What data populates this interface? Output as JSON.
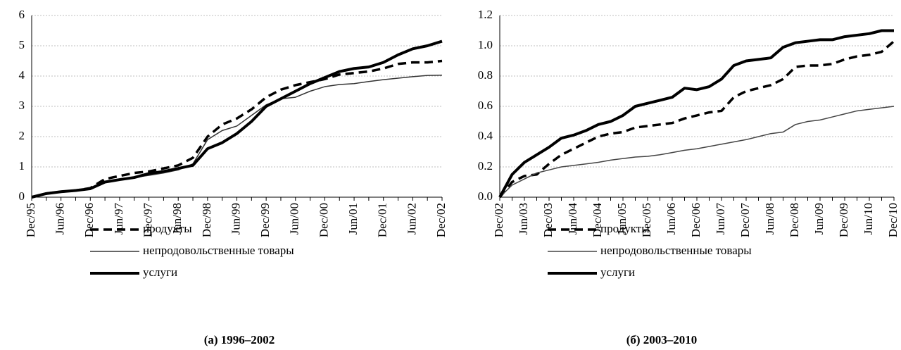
{
  "chart_data": [
    {
      "type": "line",
      "caption": "(а) 1996–2002",
      "categories": [
        "Dec/95",
        null,
        "Jun/96",
        null,
        "Dec/96",
        null,
        "Jun/97",
        null,
        "Dec/97",
        null,
        "Jun/98",
        null,
        "Dec/98",
        null,
        "Jun/99",
        null,
        "Dec/99",
        null,
        "Jun/00",
        null,
        "Dec/00",
        null,
        "Jun/01",
        null,
        "Dec/01",
        null,
        "Jun/02",
        null,
        "Dec/02"
      ],
      "ylim": [
        0,
        6
      ],
      "yticks": [
        0,
        1,
        2,
        3,
        4,
        5,
        6
      ],
      "grid": true,
      "series": [
        {
          "name": "продукты",
          "color": "#000000",
          "style": "dashed",
          "values": [
            0,
            0.12,
            0.18,
            0.22,
            0.3,
            0.6,
            0.7,
            0.8,
            0.85,
            0.95,
            1.05,
            1.3,
            2.0,
            2.4,
            2.6,
            2.9,
            3.3,
            3.55,
            3.7,
            3.8,
            3.9,
            4.05,
            4.1,
            4.15,
            4.25,
            4.4,
            4.45,
            4.45,
            4.5
          ]
        },
        {
          "name": "непродовольственные товары",
          "color": "#333333",
          "style": "thin",
          "values": [
            0,
            0.1,
            0.17,
            0.22,
            0.28,
            0.5,
            0.58,
            0.65,
            0.72,
            0.8,
            0.9,
            1.1,
            1.9,
            2.2,
            2.35,
            2.7,
            3.05,
            3.25,
            3.3,
            3.5,
            3.65,
            3.72,
            3.75,
            3.82,
            3.88,
            3.93,
            3.98,
            4.02,
            4.03
          ]
        },
        {
          "name": "услуги",
          "color": "#000000",
          "style": "thick",
          "values": [
            0,
            0.12,
            0.18,
            0.22,
            0.28,
            0.5,
            0.58,
            0.65,
            0.78,
            0.85,
            0.95,
            1.05,
            1.6,
            1.8,
            2.1,
            2.5,
            3.0,
            3.25,
            3.5,
            3.75,
            3.95,
            4.15,
            4.25,
            4.3,
            4.45,
            4.7,
            4.9,
            5.0,
            5.15
          ]
        }
      ]
    },
    {
      "type": "line",
      "caption": "(б) 2003–2010",
      "categories": [
        "Dec/02",
        null,
        "Jun/03",
        null,
        "Dec/03",
        null,
        "Jun/04",
        null,
        "Dec/04",
        null,
        "Jun/05",
        null,
        "Dec/05",
        null,
        "Jun/06",
        null,
        "Dec/06",
        null,
        "Jun/07",
        null,
        "Dec/07",
        null,
        "Jun/08",
        null,
        "Dec/08",
        null,
        "Jun/09",
        null,
        "Dec/09",
        null,
        "Jun/10",
        null,
        "Dec/10"
      ],
      "ylim": [
        0,
        1.2
      ],
      "yticks": [
        {
          "value": 0,
          "label": "0.0"
        },
        0.2,
        0.4,
        0.6,
        0.8,
        {
          "value": 1,
          "label": "1.0"
        },
        1.2
      ],
      "grid": true,
      "series": [
        {
          "name": "продукты",
          "color": "#000000",
          "style": "dashed",
          "values": [
            0,
            0.1,
            0.14,
            0.15,
            0.22,
            0.28,
            0.32,
            0.36,
            0.4,
            0.42,
            0.43,
            0.46,
            0.47,
            0.48,
            0.49,
            0.52,
            0.54,
            0.56,
            0.57,
            0.66,
            0.7,
            0.72,
            0.74,
            0.78,
            0.86,
            0.87,
            0.87,
            0.88,
            0.91,
            0.93,
            0.94,
            0.96,
            1.03
          ]
        },
        {
          "name": "непродовольственные товары",
          "color": "#444444",
          "style": "thin",
          "values": [
            0,
            0.08,
            0.12,
            0.16,
            0.18,
            0.2,
            0.21,
            0.22,
            0.23,
            0.245,
            0.255,
            0.265,
            0.27,
            0.28,
            0.295,
            0.31,
            0.32,
            0.335,
            0.35,
            0.365,
            0.38,
            0.4,
            0.42,
            0.43,
            0.48,
            0.5,
            0.51,
            0.53,
            0.55,
            0.57,
            0.58,
            0.59,
            0.6
          ]
        },
        {
          "name": "услуги",
          "color": "#000000",
          "style": "thick",
          "values": [
            0,
            0.15,
            0.23,
            0.28,
            0.33,
            0.39,
            0.41,
            0.44,
            0.48,
            0.5,
            0.54,
            0.6,
            0.62,
            0.64,
            0.66,
            0.72,
            0.71,
            0.73,
            0.78,
            0.87,
            0.9,
            0.91,
            0.92,
            0.99,
            1.02,
            1.03,
            1.04,
            1.04,
            1.06,
            1.07,
            1.08,
            1.1,
            1.1
          ]
        }
      ]
    }
  ]
}
